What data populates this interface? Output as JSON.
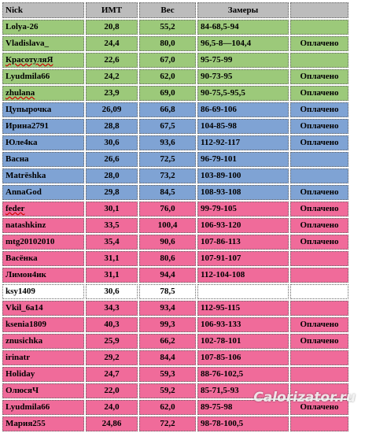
{
  "header": {
    "nick": "Nick",
    "bmi": "ИМТ",
    "weight": "Вес",
    "measurements": "Замеры",
    "paid": ""
  },
  "colors": {
    "header": "#bcbcbc",
    "green": "#9cc97a",
    "blue": "#7fa3d4",
    "pink": "#f06b9a"
  },
  "rows": [
    {
      "nick": "Lolya-26",
      "bmi": "20,8",
      "weight": "55,2",
      "measurements": "84-68,5-94",
      "paid": "",
      "color": "green"
    },
    {
      "nick": "Vladislava_",
      "bmi": "24,4",
      "weight": "80,0",
      "measurements": "96,5-8—104,4",
      "paid": "Оплачено",
      "color": "green"
    },
    {
      "nick": "КрасотуляЯ",
      "bmi": "22,6",
      "weight": "67,0",
      "measurements": "95-75-99",
      "paid": "",
      "color": "green",
      "squiggle": true
    },
    {
      "nick": "Lyudmila66",
      "bmi": "24,2",
      "weight": "62,0",
      "measurements": "90-73-95",
      "paid": "Оплачено",
      "color": "green"
    },
    {
      "nick": "zhulana",
      "bmi": "23,9",
      "weight": "69,0",
      "measurements": "90-75,5-95,5",
      "paid": "Оплачено",
      "color": "green",
      "squiggle": true
    },
    {
      "nick": "Цупырочка",
      "bmi": "26,09",
      "weight": "66,8",
      "measurements": "86-69-106",
      "paid": "Оплачено",
      "color": "blue"
    },
    {
      "nick": "Ирина2791",
      "bmi": "28,8",
      "weight": "67,5",
      "measurements": "104-85-98",
      "paid": "Оплачено",
      "color": "blue"
    },
    {
      "nick": "Юле4ка",
      "bmi": "30,6",
      "weight": "93,6",
      "measurements": "112-92-117",
      "paid": "Оплачено",
      "color": "blue"
    },
    {
      "nick": "Васна",
      "bmi": "26,6",
      "weight": "72,5",
      "measurements": "96-79-101",
      "paid": "",
      "color": "blue"
    },
    {
      "nick": "Matrёshka",
      "bmi": "28,0",
      "weight": "73,2",
      "measurements": "103-89-100",
      "paid": "",
      "color": "blue"
    },
    {
      "nick": "AnnaGod",
      "bmi": "29,8",
      "weight": "84,5",
      "measurements": "108-93-108",
      "paid": "Оплачено",
      "color": "blue"
    },
    {
      "nick": "feder",
      "bmi": "30,1",
      "weight": "76,0",
      "measurements": "99-79-105",
      "paid": "Оплачено",
      "color": "pink",
      "squiggle": true
    },
    {
      "nick": "natashkinz",
      "bmi": "33,5",
      "weight": "100,4",
      "measurements": "106-93-120",
      "paid": "Оплачено",
      "color": "pink"
    },
    {
      "nick": "mtg20102010",
      "bmi": "35,4",
      "weight": "90,6",
      "measurements": "107-86-113",
      "paid": "Оплачено",
      "color": "pink"
    },
    {
      "nick": "Васёнка",
      "bmi": "31,1",
      "weight": "80,6",
      "measurements": "107-91-107",
      "paid": "",
      "color": "pink"
    },
    {
      "nick": "Лимон4ик",
      "bmi": "31,1",
      "weight": "94,4",
      "measurements": "112-104-108",
      "paid": "",
      "color": "pink"
    },
    {
      "nick": "ksy1409",
      "bmi": "30,6",
      "weight": "78,5",
      "measurements": "",
      "paid": "",
      "color": "plain"
    },
    {
      "nick": "Vkil_6a14",
      "bmi": "34,3",
      "weight": "93,4",
      "measurements": "112-95-115",
      "paid": "",
      "color": "pink"
    },
    {
      "nick": "ksenia1809",
      "bmi": "40,3",
      "weight": "99,3",
      "measurements": "106-93-133",
      "paid": "Оплачено",
      "color": "pink"
    },
    {
      "nick": "znusichka",
      "bmi": "25,9",
      "weight": "66,2",
      "measurements": "102-78-101",
      "paid": "Оплачено",
      "color": "pink"
    },
    {
      "nick": "irinatr",
      "bmi": "29,2",
      "weight": "84,4",
      "measurements": "107-85-106",
      "paid": "",
      "color": "pink"
    },
    {
      "nick": "Holiday",
      "bmi": "24,7",
      "weight": "59,3",
      "measurements": "88-76-102,5",
      "paid": "",
      "color": "pink"
    },
    {
      "nick": "ОлюсяЧ",
      "bmi": "22,0",
      "weight": "59,2",
      "measurements": "85-71,5-93",
      "paid": "",
      "color": "pink"
    },
    {
      "nick": "Lyudmila66",
      "bmi": "24,0",
      "weight": "62,0",
      "measurements": "89-75-98",
      "paid": "Оплачено",
      "color": "pink"
    },
    {
      "nick": "Мария255",
      "bmi": "24,86",
      "weight": "72,2",
      "measurements": "98-78-100,5",
      "paid": "",
      "color": "pink"
    }
  ],
  "watermark": "Calorizator.ru"
}
